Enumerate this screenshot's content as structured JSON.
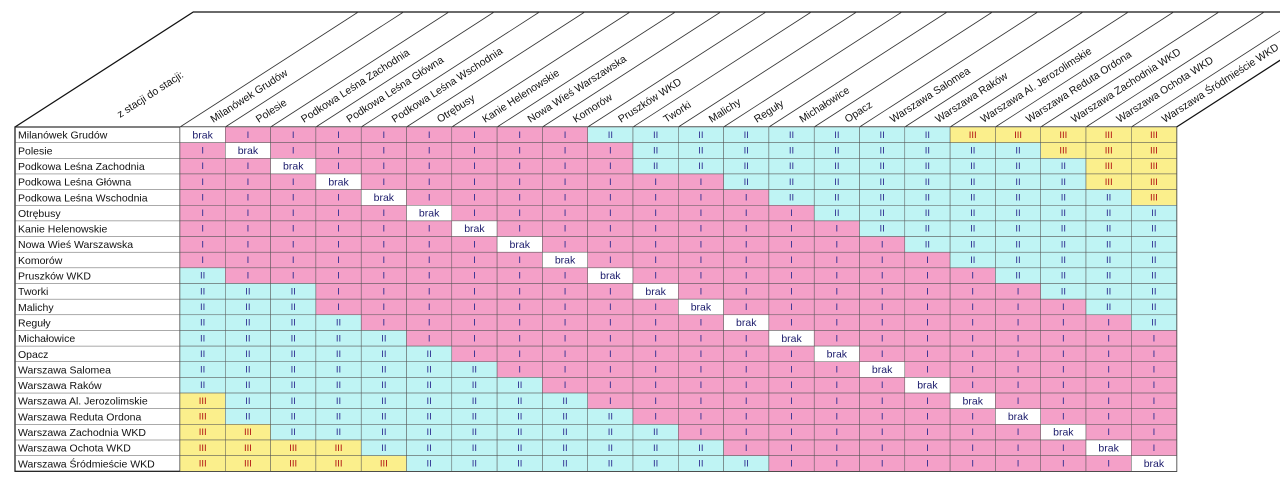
{
  "corner_label": "z stacji do stacji:",
  "stations": [
    "Milanówek Grudów",
    "Polesie",
    "Podkowa Leśna Zachodnia",
    "Podkowa Leśna Główna",
    "Podkowa Leśna Wschodnia",
    "Otrębusy",
    "Kanie Helenowskie",
    "Nowa Wieś Warszawska",
    "Komorów",
    "Pruszków WKD",
    "Tworki",
    "Malichy",
    "Reguły",
    "Michałowice",
    "Opacz",
    "Warszawa Salomea",
    "Warszawa Raków",
    "Warszawa Al. Jerozolimskie",
    "Warszawa Reduta Ordona",
    "Warszawa Zachodnia WKD",
    "Warszawa Ochota WKD",
    "Warszawa Śródmieście WKD"
  ],
  "zone_labels": {
    "0": "brak",
    "1": "I",
    "2": "II",
    "3": "III"
  },
  "zone_colors": {
    "0": "#ffffff",
    "1": "#f4a0c8",
    "2": "#bff4f4",
    "3": "#fbef8c"
  },
  "matrix": [
    [
      0,
      1,
      1,
      1,
      1,
      1,
      1,
      1,
      1,
      2,
      2,
      2,
      2,
      2,
      2,
      2,
      2,
      3,
      3,
      3,
      3,
      3
    ],
    [
      1,
      0,
      1,
      1,
      1,
      1,
      1,
      1,
      1,
      1,
      2,
      2,
      2,
      2,
      2,
      2,
      2,
      2,
      2,
      3,
      3,
      3
    ],
    [
      1,
      1,
      0,
      1,
      1,
      1,
      1,
      1,
      1,
      1,
      2,
      2,
      2,
      2,
      2,
      2,
      2,
      2,
      2,
      2,
      3,
      3
    ],
    [
      1,
      1,
      1,
      0,
      1,
      1,
      1,
      1,
      1,
      1,
      1,
      1,
      2,
      2,
      2,
      2,
      2,
      2,
      2,
      2,
      3,
      3
    ],
    [
      1,
      1,
      1,
      1,
      0,
      1,
      1,
      1,
      1,
      1,
      1,
      1,
      1,
      2,
      2,
      2,
      2,
      2,
      2,
      2,
      2,
      3
    ],
    [
      1,
      1,
      1,
      1,
      1,
      0,
      1,
      1,
      1,
      1,
      1,
      1,
      1,
      1,
      2,
      2,
      2,
      2,
      2,
      2,
      2,
      2
    ],
    [
      1,
      1,
      1,
      1,
      1,
      1,
      0,
      1,
      1,
      1,
      1,
      1,
      1,
      1,
      1,
      2,
      2,
      2,
      2,
      2,
      2,
      2
    ],
    [
      1,
      1,
      1,
      1,
      1,
      1,
      1,
      0,
      1,
      1,
      1,
      1,
      1,
      1,
      1,
      1,
      2,
      2,
      2,
      2,
      2,
      2
    ],
    [
      1,
      1,
      1,
      1,
      1,
      1,
      1,
      1,
      0,
      1,
      1,
      1,
      1,
      1,
      1,
      1,
      1,
      2,
      2,
      2,
      2,
      2
    ],
    [
      2,
      1,
      1,
      1,
      1,
      1,
      1,
      1,
      1,
      0,
      1,
      1,
      1,
      1,
      1,
      1,
      1,
      1,
      2,
      2,
      2,
      2
    ],
    [
      2,
      2,
      2,
      1,
      1,
      1,
      1,
      1,
      1,
      1,
      0,
      1,
      1,
      1,
      1,
      1,
      1,
      1,
      1,
      2,
      2,
      2
    ],
    [
      2,
      2,
      2,
      1,
      1,
      1,
      1,
      1,
      1,
      1,
      1,
      0,
      1,
      1,
      1,
      1,
      1,
      1,
      1,
      1,
      2,
      2
    ],
    [
      2,
      2,
      2,
      2,
      1,
      1,
      1,
      1,
      1,
      1,
      1,
      1,
      0,
      1,
      1,
      1,
      1,
      1,
      1,
      1,
      1,
      2
    ],
    [
      2,
      2,
      2,
      2,
      2,
      1,
      1,
      1,
      1,
      1,
      1,
      1,
      1,
      0,
      1,
      1,
      1,
      1,
      1,
      1,
      1,
      1
    ],
    [
      2,
      2,
      2,
      2,
      2,
      2,
      1,
      1,
      1,
      1,
      1,
      1,
      1,
      1,
      0,
      1,
      1,
      1,
      1,
      1,
      1,
      1
    ],
    [
      2,
      2,
      2,
      2,
      2,
      2,
      2,
      1,
      1,
      1,
      1,
      1,
      1,
      1,
      1,
      0,
      1,
      1,
      1,
      1,
      1,
      1
    ],
    [
      2,
      2,
      2,
      2,
      2,
      2,
      2,
      2,
      1,
      1,
      1,
      1,
      1,
      1,
      1,
      1,
      0,
      1,
      1,
      1,
      1,
      1
    ],
    [
      3,
      2,
      2,
      2,
      2,
      2,
      2,
      2,
      2,
      1,
      1,
      1,
      1,
      1,
      1,
      1,
      1,
      0,
      1,
      1,
      1,
      1
    ],
    [
      3,
      2,
      2,
      2,
      2,
      2,
      2,
      2,
      2,
      2,
      1,
      1,
      1,
      1,
      1,
      1,
      1,
      1,
      0,
      1,
      1,
      1
    ],
    [
      3,
      3,
      2,
      2,
      2,
      2,
      2,
      2,
      2,
      2,
      2,
      1,
      1,
      1,
      1,
      1,
      1,
      1,
      1,
      0,
      1,
      1
    ],
    [
      3,
      3,
      3,
      3,
      2,
      2,
      2,
      2,
      2,
      2,
      2,
      2,
      1,
      1,
      1,
      1,
      1,
      1,
      1,
      1,
      0,
      1
    ],
    [
      3,
      3,
      3,
      3,
      3,
      2,
      2,
      2,
      2,
      2,
      2,
      2,
      2,
      1,
      1,
      1,
      1,
      1,
      1,
      1,
      1,
      0
    ]
  ]
}
